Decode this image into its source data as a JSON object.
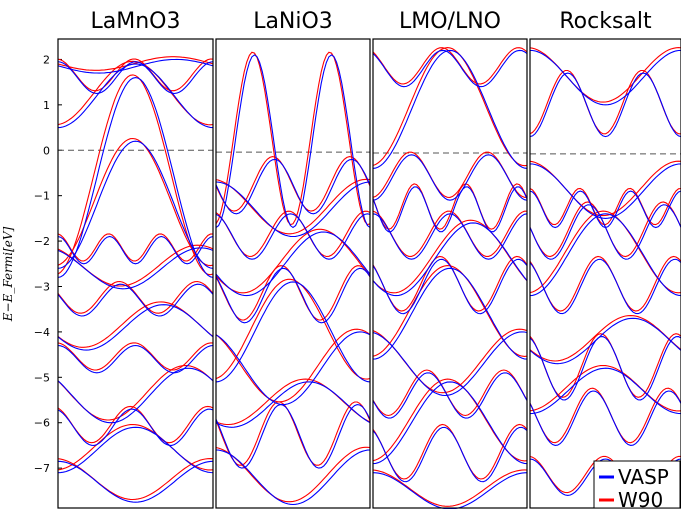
{
  "chart_data": {
    "type": "line",
    "ylabel": "E−E_Fermi[eV]",
    "ylim": [
      -7.9,
      2.45
    ],
    "yticks": [
      2,
      1,
      0,
      -1,
      -2,
      -3,
      -4,
      -5,
      -6,
      -7
    ],
    "ytick_labels": [
      "2",
      "1",
      "0",
      "−1",
      "−2",
      "−3",
      "−4",
      "−5",
      "−6",
      "−7"
    ],
    "fermi_level": 0,
    "grid": false,
    "legend": {
      "placement": "bottom-right",
      "entries": [
        {
          "label": "VASP",
          "color": "#0000ff"
        },
        {
          "label": "W90",
          "color": "#ff0000"
        }
      ]
    },
    "series_colors": {
      "VASP": "#0000ff",
      "W90": "#ff0000"
    },
    "panels": [
      {
        "title": "LaMnO3",
        "fermi_offset": 0.0,
        "shift": 0.12,
        "bands": [
          {
            "base": -7.3,
            "amp": 0.45,
            "freq": 1,
            "phase": 0.0
          },
          {
            "base": -6.6,
            "amp": 0.5,
            "freq": 1,
            "phase": 3.14
          },
          {
            "base": -6.1,
            "amp": 0.4,
            "freq": 2,
            "phase": 0.3
          },
          {
            "base": -5.4,
            "amp": 0.6,
            "freq": 1,
            "phase": 1.0
          },
          {
            "base": -4.6,
            "amp": 0.3,
            "freq": 2,
            "phase": 0.0
          },
          {
            "base": -3.9,
            "amp": 0.5,
            "freq": 1,
            "phase": 2.0
          },
          {
            "base": -3.3,
            "amp": 0.35,
            "freq": 2,
            "phase": 1.2
          },
          {
            "base": -2.6,
            "amp": 0.45,
            "freq": 1,
            "phase": 0.5
          },
          {
            "base": -2.2,
            "amp": 0.3,
            "freq": 3,
            "phase": 0.0
          },
          {
            "base": -1.2,
            "amp": 1.4,
            "freq": 1,
            "phase": 3.14
          },
          {
            "base": -0.6,
            "amp": 2.2,
            "freq": 1,
            "phase": 3.14
          },
          {
            "base": 1.6,
            "amp": 0.35,
            "freq": 2,
            "phase": 0.0
          },
          {
            "base": 1.85,
            "amp": 0.15,
            "freq": 1,
            "phase": 1.5
          },
          {
            "base": 1.2,
            "amp": 0.7,
            "freq": 1,
            "phase": 3.14
          }
        ]
      },
      {
        "title": "LaNiO3",
        "fermi_offset": -0.04,
        "shift": 0.15,
        "bands": [
          {
            "base": -7.2,
            "amp": 0.6,
            "freq": 1,
            "phase": 0.0
          },
          {
            "base": -6.3,
            "amp": 0.7,
            "freq": 2,
            "phase": 1.0
          },
          {
            "base": -5.6,
            "amp": 0.5,
            "freq": 1,
            "phase": 2.5
          },
          {
            "base": -4.8,
            "amp": 0.8,
            "freq": 1,
            "phase": 0.4
          },
          {
            "base": -4.0,
            "amp": 1.1,
            "freq": 1,
            "phase": 3.14
          },
          {
            "base": -3.2,
            "amp": 0.6,
            "freq": 2,
            "phase": 0.8
          },
          {
            "base": -2.5,
            "amp": 0.7,
            "freq": 1,
            "phase": 1.9
          },
          {
            "base": -1.9,
            "amp": 0.5,
            "freq": 2,
            "phase": 0.2
          },
          {
            "base": -1.3,
            "amp": 0.6,
            "freq": 1,
            "phase": 0.0
          },
          {
            "base": -0.8,
            "amp": 0.6,
            "freq": 2,
            "phase": 1.5
          },
          {
            "base": 0.2,
            "amp": 1.9,
            "freq": 2,
            "phase": 3.14
          }
        ]
      },
      {
        "title": "LMO/LNO",
        "fermi_offset": -0.06,
        "shift": 0.1,
        "bands": [
          {
            "base": -7.5,
            "amp": 0.4,
            "freq": 1,
            "phase": 0.0
          },
          {
            "base": -6.7,
            "amp": 0.6,
            "freq": 2,
            "phase": 0.5
          },
          {
            "base": -6.0,
            "amp": 0.9,
            "freq": 1,
            "phase": 3.14
          },
          {
            "base": -5.4,
            "amp": 0.5,
            "freq": 2,
            "phase": 1.8
          },
          {
            "base": -4.7,
            "amp": 0.7,
            "freq": 1,
            "phase": 0.2
          },
          {
            "base": -3.6,
            "amp": 1.0,
            "freq": 1,
            "phase": 3.14
          },
          {
            "base": -3.0,
            "amp": 0.6,
            "freq": 2,
            "phase": 0.7
          },
          {
            "base": -2.4,
            "amp": 0.8,
            "freq": 1,
            "phase": 2.2
          },
          {
            "base": -1.9,
            "amp": 0.5,
            "freq": 2,
            "phase": 0.0
          },
          {
            "base": -1.3,
            "amp": 0.5,
            "freq": 3,
            "phase": 1.1
          },
          {
            "base": -0.6,
            "amp": 0.5,
            "freq": 2,
            "phase": 3.14
          },
          {
            "base": 0.9,
            "amp": 1.3,
            "freq": 1,
            "phase": 3.14
          },
          {
            "base": 1.8,
            "amp": 0.4,
            "freq": 2,
            "phase": 0.6
          }
        ]
      },
      {
        "title": "Rocksalt",
        "fermi_offset": -0.08,
        "shift": 0.1,
        "bands": [
          {
            "base": -7.2,
            "amp": 0.4,
            "freq": 2,
            "phase": 0.0
          },
          {
            "base": -5.9,
            "amp": 0.6,
            "freq": 2,
            "phase": 1.0
          },
          {
            "base": -5.3,
            "amp": 0.5,
            "freq": 1,
            "phase": 3.14
          },
          {
            "base": -4.8,
            "amp": 0.7,
            "freq": 2,
            "phase": 0.3
          },
          {
            "base": -4.2,
            "amp": 0.5,
            "freq": 1,
            "phase": 2.0
          },
          {
            "base": -3.0,
            "amp": 0.6,
            "freq": 2,
            "phase": 0.5
          },
          {
            "base": -2.3,
            "amp": 0.9,
            "freq": 1,
            "phase": 3.14
          },
          {
            "base": -1.8,
            "amp": 0.6,
            "freq": 2,
            "phase": 1.4
          },
          {
            "base": -1.3,
            "amp": 0.4,
            "freq": 3,
            "phase": 0.0
          },
          {
            "base": -0.9,
            "amp": 0.6,
            "freq": 1,
            "phase": 0.0
          },
          {
            "base": 1.0,
            "amp": 0.7,
            "freq": 2,
            "phase": 3.14
          },
          {
            "base": 1.6,
            "amp": 0.6,
            "freq": 1,
            "phase": 0.0
          }
        ]
      }
    ]
  }
}
